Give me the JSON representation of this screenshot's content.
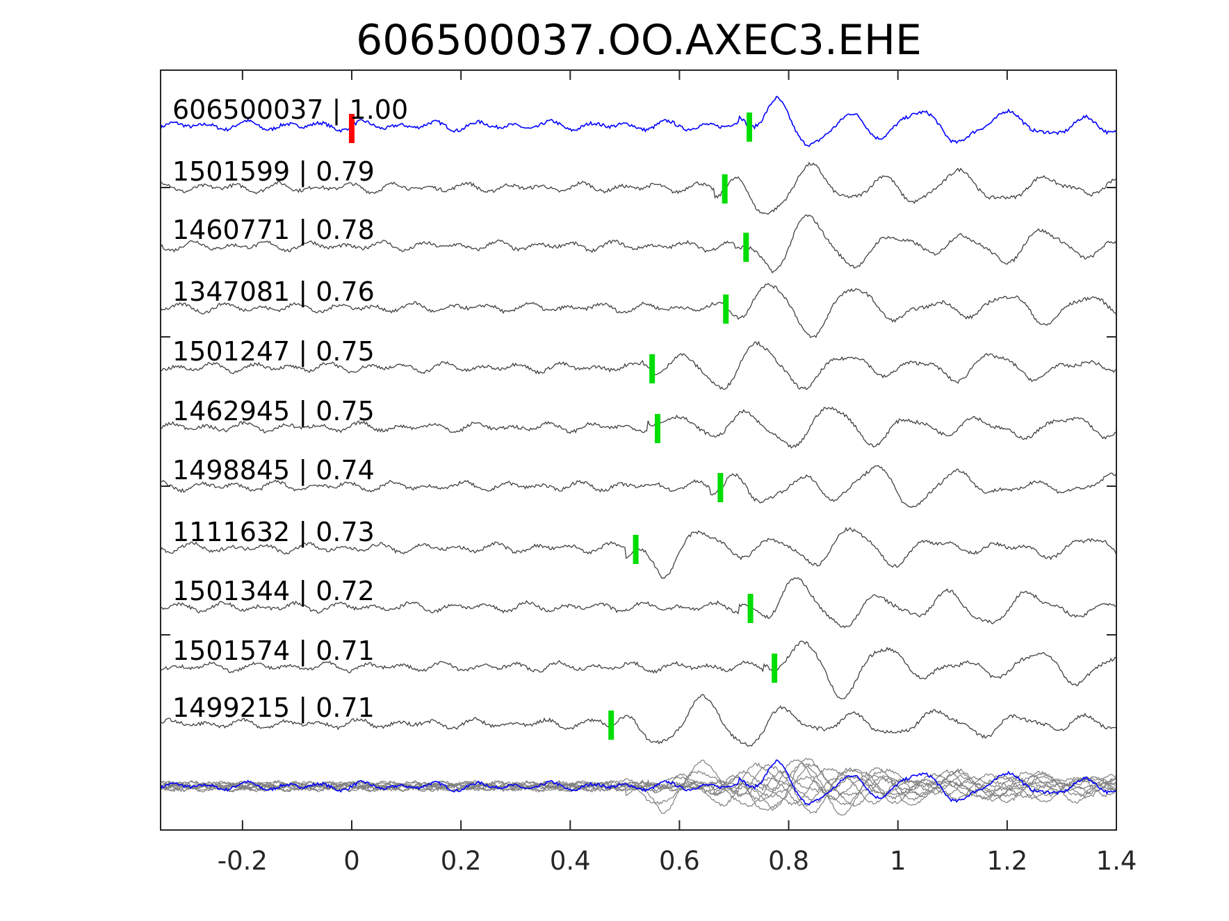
{
  "chart_data": {
    "type": "line",
    "title": "606500037.OO.AXEC3.EHE",
    "xlabel": "",
    "ylabel": "",
    "xlim": [
      -0.35,
      1.4
    ],
    "xticks": [
      -0.2,
      0,
      0.2,
      0.4,
      0.6,
      0.8,
      1,
      1.2,
      1.4
    ],
    "xtick_labels": [
      "-0.2",
      "0",
      "0.2",
      "0.4",
      "0.6",
      "0.8",
      "1",
      "1.2",
      "1.4"
    ],
    "grid": false,
    "reference_pick_time": 0,
    "traces": [
      {
        "id": "606500037",
        "cc": "1.00",
        "label": "606500037 | 1.00",
        "pick_time": 0.728,
        "color": "#0000ff"
      },
      {
        "id": "1501599",
        "cc": "0.79",
        "label": "1501599 | 0.79",
        "pick_time": 0.683,
        "color": "#404040"
      },
      {
        "id": "1460771",
        "cc": "0.78",
        "label": "1460771 | 0.78",
        "pick_time": 0.722,
        "color": "#404040"
      },
      {
        "id": "1347081",
        "cc": "0.76",
        "label": "1347081 | 0.76",
        "pick_time": 0.685,
        "color": "#404040"
      },
      {
        "id": "1501247",
        "cc": "0.75",
        "label": "1501247 | 0.75",
        "pick_time": 0.55,
        "color": "#404040"
      },
      {
        "id": "1462945",
        "cc": "0.75",
        "label": "1462945 | 0.75",
        "pick_time": 0.56,
        "color": "#404040"
      },
      {
        "id": "1498845",
        "cc": "0.74",
        "label": "1498845 | 0.74",
        "pick_time": 0.675,
        "color": "#404040"
      },
      {
        "id": "1111632",
        "cc": "0.73",
        "label": "1111632 | 0.73",
        "pick_time": 0.52,
        "color": "#404040"
      },
      {
        "id": "1501344",
        "cc": "0.72",
        "label": "1501344 | 0.72",
        "pick_time": 0.73,
        "color": "#404040"
      },
      {
        "id": "1501574",
        "cc": "0.71",
        "label": "1501574 | 0.71",
        "pick_time": 0.774,
        "color": "#404040"
      },
      {
        "id": "1499215",
        "cc": "0.71",
        "label": "1499215 | 0.71",
        "pick_time": 0.475,
        "color": "#404040"
      }
    ],
    "stack": {
      "description_color": "#808080",
      "master_color": "#0000ff"
    },
    "colors": {
      "pick": "#00dd00",
      "reference_pick": "#ff0000",
      "axes": "#262626"
    }
  }
}
